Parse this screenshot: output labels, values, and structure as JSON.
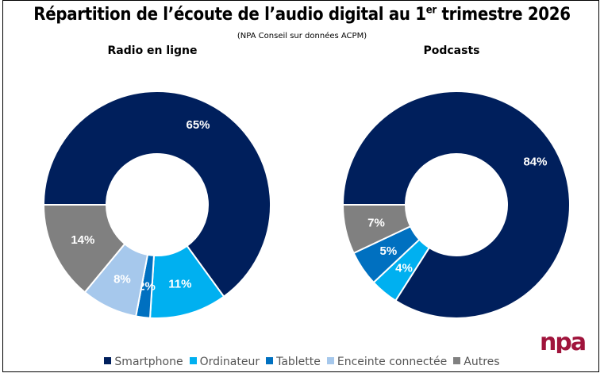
{
  "title_main": "Répartition de l’écoute de l’audio digital au 1",
  "title_sup": "er",
  "title_end": " trimestre 2026",
  "subtitle": "(NPA Conseil sur données ACPM)",
  "logo_text": "npa",
  "colors": {
    "Smartphone": "#001f5c",
    "Ordinateur": "#00b0f0",
    "Tablette": "#0070c0",
    "Enceinte connectée": "#a6c8ec",
    "Autres": "#808080"
  },
  "chart_data": [
    {
      "type": "pie",
      "title": "Radio en ligne",
      "categories": [
        "Smartphone",
        "Ordinateur",
        "Tablette",
        "Enceinte connectée",
        "Autres"
      ],
      "values": [
        65,
        11,
        2,
        8,
        14
      ],
      "labels": [
        "65%",
        "11%",
        "2%",
        "8%",
        "14%"
      ],
      "donut": true,
      "start": "left",
      "direction": "clockwise"
    },
    {
      "type": "pie",
      "title": "Podcasts",
      "categories": [
        "Smartphone",
        "Ordinateur",
        "Tablette",
        "Enceinte connectée",
        "Autres"
      ],
      "values": [
        84,
        4,
        5,
        0,
        7
      ],
      "labels": [
        "84%",
        "4%",
        "5%",
        "",
        "7%"
      ],
      "donut": true,
      "start": "left",
      "direction": "clockwise"
    }
  ],
  "legend": [
    "Smartphone",
    "Ordinateur",
    "Tablette",
    "Enceinte connectée",
    "Autres"
  ],
  "legend_position": "bottom"
}
